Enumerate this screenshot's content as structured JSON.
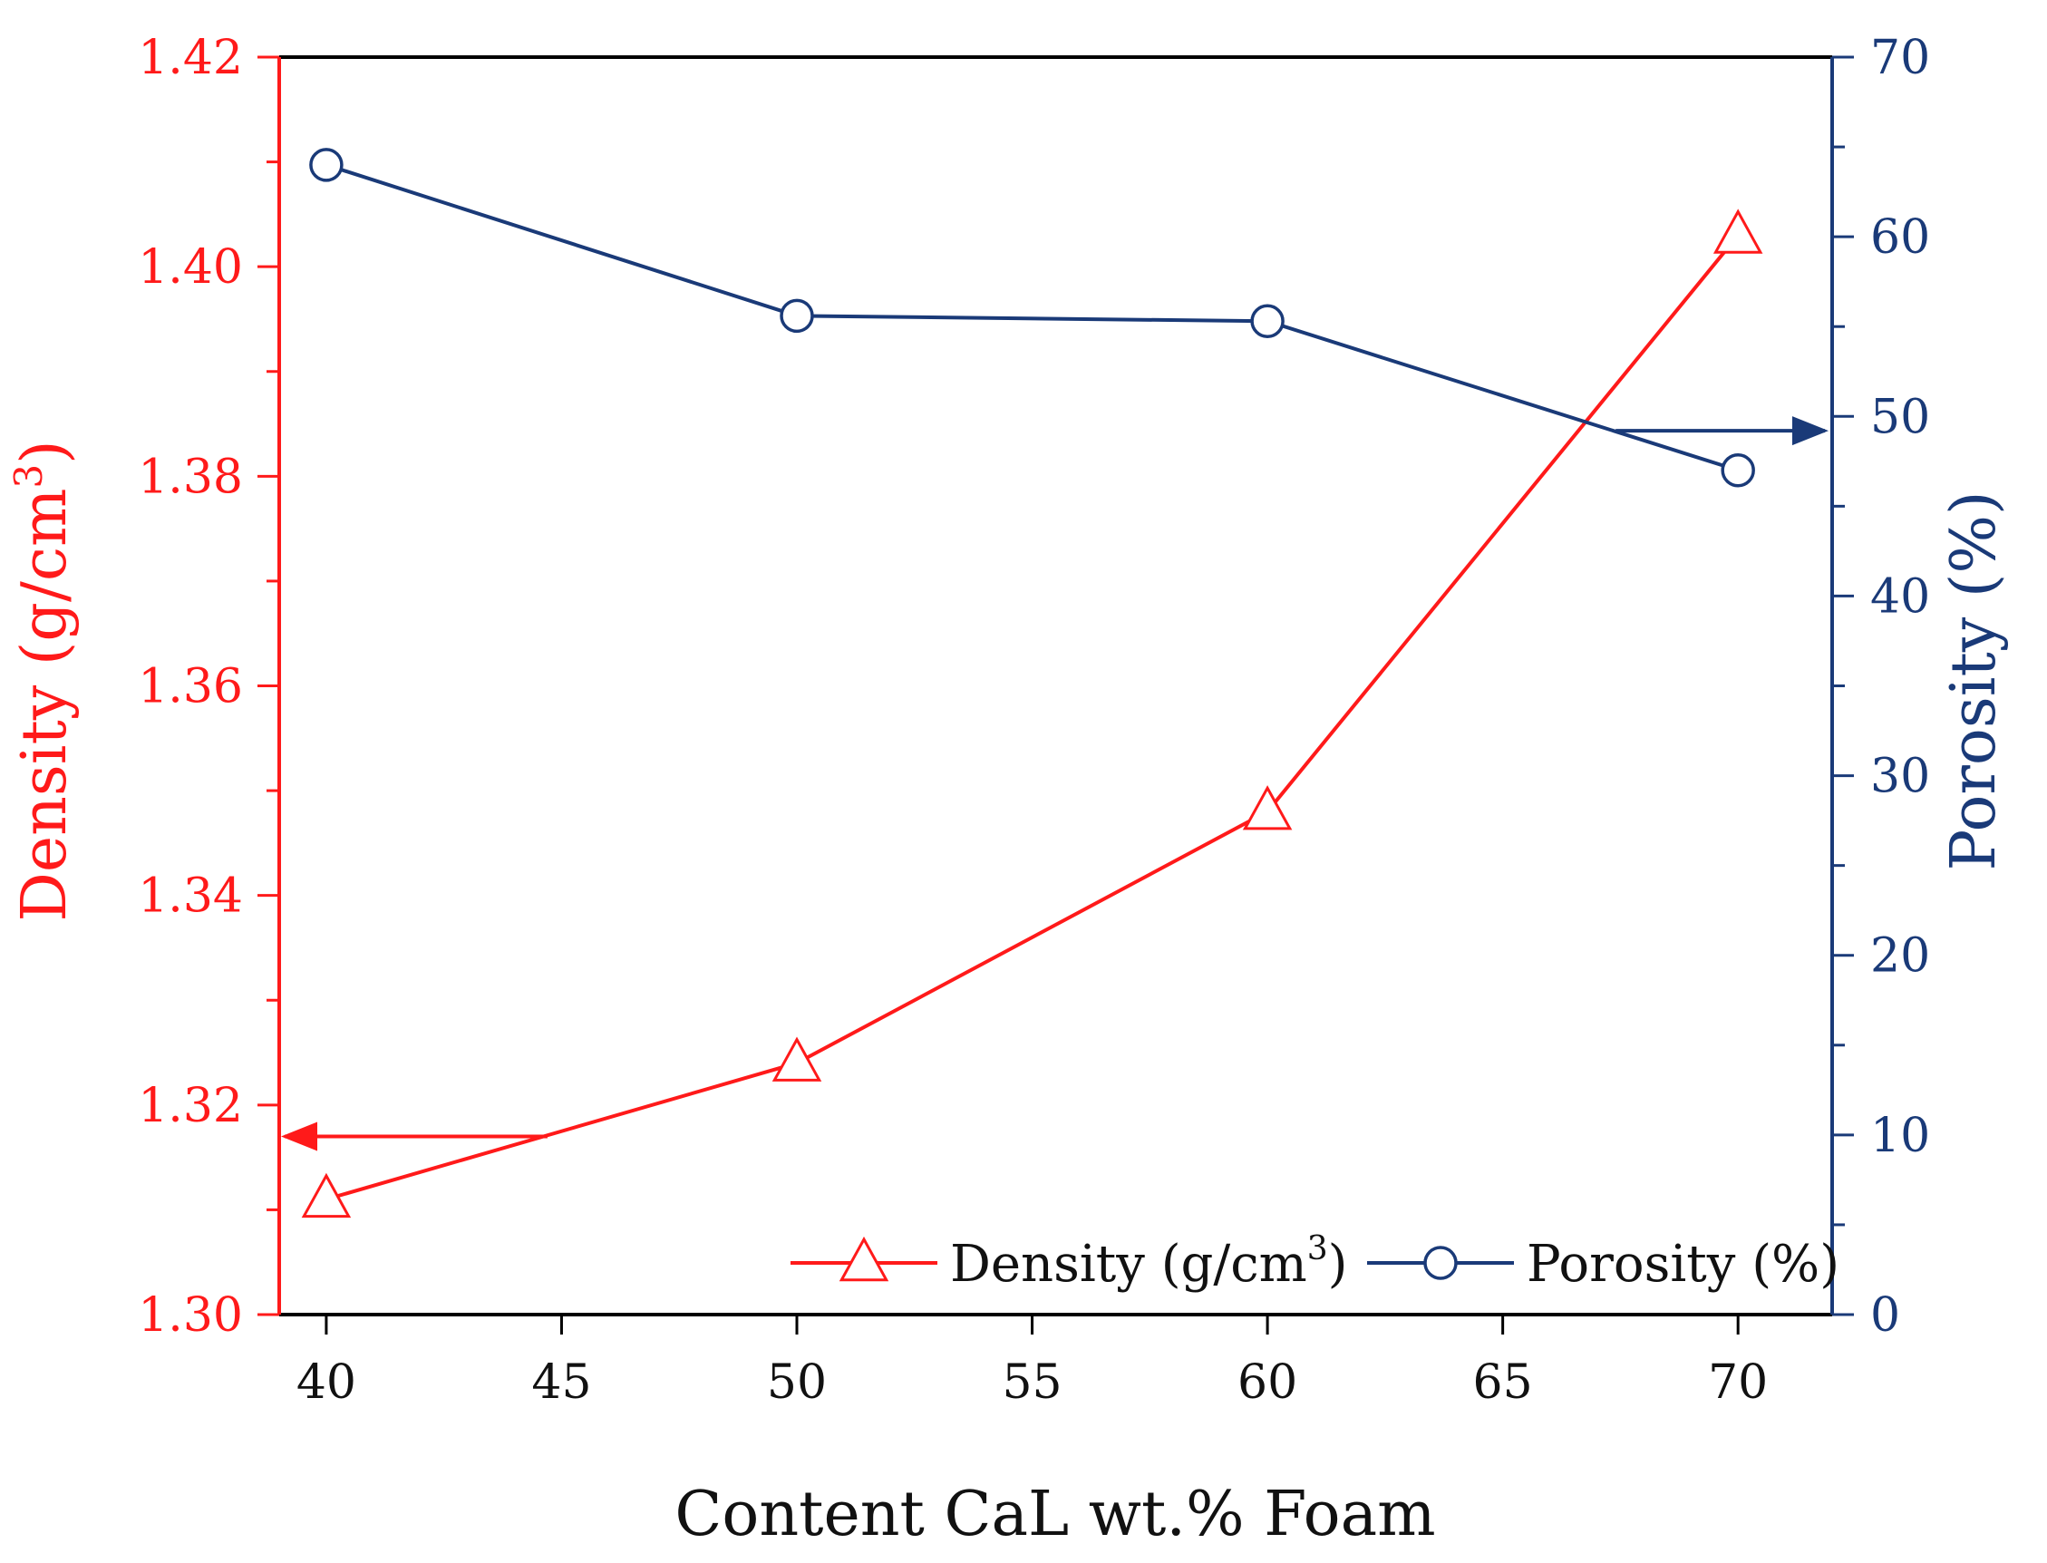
{
  "chart_data": {
    "type": "line",
    "title": "",
    "xlabel": "Content CaL wt.% Foam",
    "x": [
      40,
      50,
      60,
      70
    ],
    "xlim": [
      39,
      72
    ],
    "xticks": [
      40,
      45,
      50,
      55,
      60,
      65,
      70
    ],
    "y_left": {
      "label_main": "Density (g/cm",
      "label_sup": "3",
      "label_end": ")",
      "lim": [
        1.3,
        1.42
      ],
      "ticks": [
        "1.30",
        "1.32",
        "1.34",
        "1.36",
        "1.38",
        "1.40",
        "1.42"
      ],
      "minor_step": 0.01,
      "color": "#ff1a1a"
    },
    "y_right": {
      "label": "Porosity (%)",
      "lim": [
        0,
        70
      ],
      "ticks": [
        "0",
        "10",
        "20",
        "30",
        "40",
        "50",
        "60",
        "70"
      ],
      "minor_step": 5,
      "color": "#1a3a78"
    },
    "series": [
      {
        "name": "Density (g/cm3)",
        "legend_main": "Density (g/cm",
        "legend_sup": "3",
        "legend_end": ")",
        "axis": "left",
        "marker": "triangle-open",
        "color": "#ff1a1a",
        "values": [
          1.311,
          1.324,
          1.348,
          1.403
        ]
      },
      {
        "name": "Porosity (%)",
        "legend_main": "Porosity (%)",
        "axis": "right",
        "marker": "circle-open",
        "color": "#1a3a78",
        "values": [
          64,
          55.6,
          55.3,
          47
        ]
      }
    ],
    "annotations": [
      {
        "type": "arrow",
        "points_to": "left-axis",
        "color": "#ff1a1a",
        "at_y": 1.317,
        "from_x": 44.7
      },
      {
        "type": "arrow",
        "points_to": "right-axis",
        "color": "#1a3a78",
        "at_y": 49.2,
        "from_x": 67.4
      }
    ],
    "legend_position": "bottom-right"
  }
}
